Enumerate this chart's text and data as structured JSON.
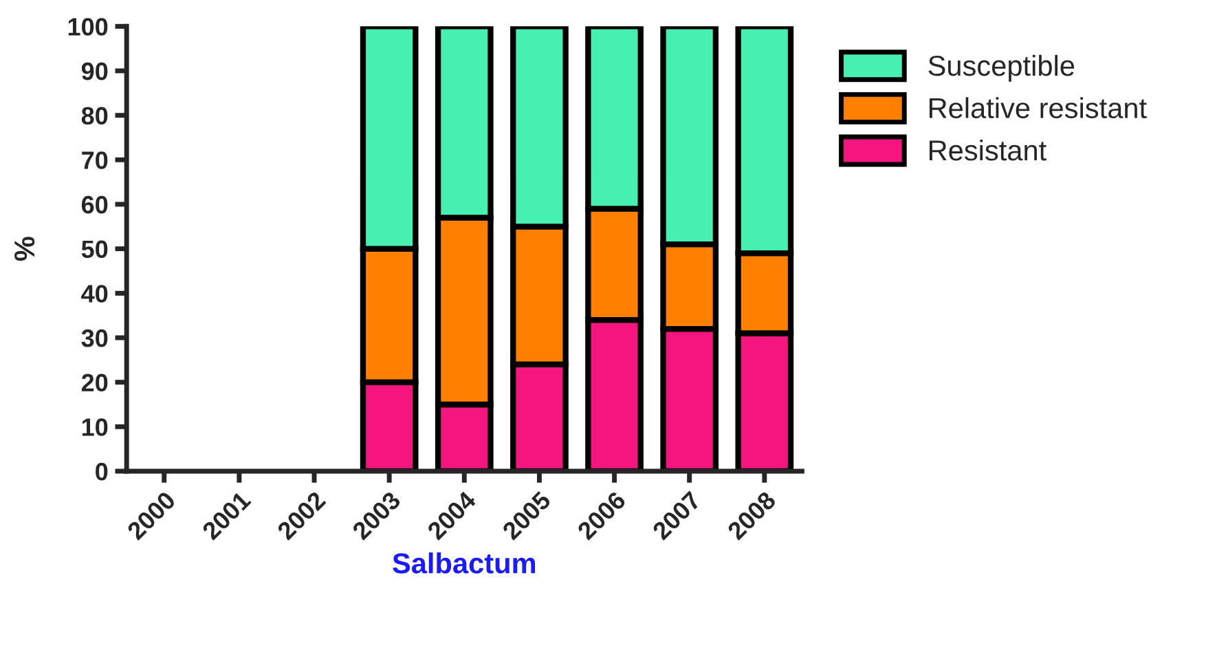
{
  "chart_data": {
    "type": "bar",
    "stacked": true,
    "xlabel": "Salbactum",
    "ylabel": "%",
    "categories": [
      "2000",
      "2001",
      "2002",
      "2003",
      "2004",
      "2005",
      "2006",
      "2007",
      "2008"
    ],
    "series": [
      {
        "name": "Resistant",
        "color": "#f5157f",
        "values": [
          null,
          null,
          null,
          20,
          15,
          24,
          34,
          32,
          31
        ]
      },
      {
        "name": "Relative resistant",
        "color": "#ff8000",
        "values": [
          null,
          null,
          null,
          30,
          42,
          31,
          25,
          19,
          18
        ]
      },
      {
        "name": "Susceptible",
        "color": "#45f0b0",
        "values": [
          null,
          null,
          null,
          50,
          43,
          45,
          41,
          49,
          51
        ]
      }
    ],
    "ylim": [
      0,
      100
    ],
    "yticks": [
      0,
      10,
      20,
      30,
      40,
      50,
      60,
      70,
      80,
      90,
      100
    ],
    "grid": false,
    "legend": "top right"
  }
}
